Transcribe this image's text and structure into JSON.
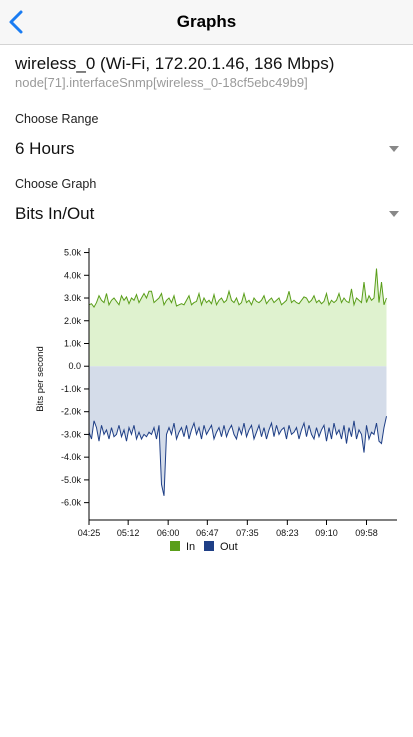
{
  "navbar": {
    "title": "Graphs"
  },
  "interface": {
    "title": "wireless_0 (Wi-Fi, 172.20.1.46, 186 Mbps)",
    "subtitle": "node[71].interfaceSnmp[wireless_0-18cf5ebc49b9]"
  },
  "range": {
    "label": "Choose Range",
    "value": "6 Hours"
  },
  "graph": {
    "label": "Choose Graph",
    "value": "Bits In/Out"
  },
  "chart_data": {
    "type": "area",
    "ylabel": "Bits per second",
    "ylim": [
      -6500,
      5200
    ],
    "yticks": [
      5000,
      4000,
      3000,
      2000,
      1000,
      0,
      -1000,
      -2000,
      -3000,
      -4000,
      -5000,
      -6000
    ],
    "ytick_labels": [
      "5.0k",
      "4.0k",
      "3.0k",
      "2.0k",
      "1.0k",
      "0.0",
      "-1.0k",
      "-2.0k",
      "-3.0k",
      "-4.0k",
      "-5.0k",
      "-6.0k"
    ],
    "x_minutes": [
      265,
      275,
      285,
      295,
      305,
      315,
      325,
      335,
      345,
      355,
      365,
      375,
      385,
      395,
      405,
      415,
      425,
      435,
      445,
      455,
      465,
      475,
      485,
      495,
      505,
      515,
      525,
      535,
      545,
      555,
      565,
      575,
      585,
      595,
      605,
      615,
      625
    ],
    "xlim": [
      265,
      625
    ],
    "xticks": [
      265,
      312,
      360,
      407,
      455,
      503,
      550,
      598
    ],
    "xtick_labels": [
      "04:25",
      "05:12",
      "06:00",
      "06:47",
      "07:35",
      "08:23",
      "09:10",
      "09:58"
    ],
    "series": [
      {
        "name": "In",
        "color": "#5a9e1a",
        "fill": "#dff2cf",
        "x": [
          265,
          268,
          271,
          274,
          277,
          280,
          283,
          286,
          289,
          292,
          295,
          298,
          301,
          304,
          307,
          310,
          313,
          316,
          319,
          322,
          325,
          328,
          331,
          334,
          337,
          340,
          343,
          346,
          349,
          352,
          355,
          358,
          361,
          364,
          367,
          370,
          373,
          376,
          379,
          382,
          385,
          388,
          391,
          394,
          397,
          400,
          403,
          406,
          409,
          412,
          415,
          418,
          421,
          424,
          427,
          430,
          433,
          436,
          439,
          442,
          445,
          448,
          451,
          454,
          457,
          460,
          463,
          466,
          469,
          472,
          475,
          478,
          481,
          484,
          487,
          490,
          493,
          496,
          499,
          502,
          505,
          508,
          511,
          514,
          517,
          520,
          523,
          526,
          529,
          532,
          535,
          538,
          541,
          544,
          547,
          550,
          553,
          556,
          559,
          562,
          565,
          568,
          571,
          574,
          577,
          580,
          583,
          586,
          589,
          592,
          595,
          598,
          601,
          604,
          607,
          610,
          613,
          616,
          619,
          622
        ],
        "values": [
          2700,
          2750,
          2600,
          2800,
          3100,
          2900,
          2800,
          3200,
          2700,
          2900,
          3000,
          2850,
          2700,
          3100,
          2900,
          3050,
          2750,
          3000,
          2900,
          3150,
          2800,
          3000,
          3200,
          3000,
          3300,
          3300,
          2800,
          2900,
          3000,
          3200,
          2700,
          2900,
          3000,
          2800,
          3100,
          2650,
          2700,
          2750,
          2700,
          2900,
          3100,
          2700,
          2800,
          2850,
          3200,
          2700,
          3000,
          2800,
          2900,
          2750,
          3150,
          2700,
          2900,
          3000,
          2800,
          2900,
          3300,
          2900,
          2800,
          3000,
          2700,
          2800,
          3200,
          2800,
          2900,
          2700,
          3000,
          2850,
          2800,
          2900,
          3100,
          2750,
          2900,
          3000,
          2800,
          2900,
          3000,
          2700,
          2800,
          2900,
          3300,
          2800,
          2900,
          2800,
          2750,
          2900,
          3050,
          3000,
          2800,
          2900,
          3100,
          2800,
          2900,
          2750,
          2850,
          3200,
          2700,
          2900,
          2800,
          2900,
          3200,
          2800,
          3000,
          2850,
          2800,
          3400,
          2700,
          3000,
          2900,
          2800,
          3700,
          2800,
          3100,
          2900,
          3000,
          4300,
          2800,
          3700,
          2700,
          3000
        ]
      },
      {
        "name": "Out",
        "color": "#1f3f86",
        "fill": "#d4dce9",
        "x": [
          265,
          268,
          271,
          274,
          277,
          280,
          283,
          286,
          289,
          292,
          295,
          298,
          301,
          304,
          307,
          310,
          313,
          316,
          319,
          322,
          325,
          328,
          331,
          334,
          337,
          340,
          343,
          346,
          349,
          352,
          355,
          358,
          361,
          364,
          367,
          370,
          373,
          376,
          379,
          382,
          385,
          388,
          391,
          394,
          397,
          400,
          403,
          406,
          409,
          412,
          415,
          418,
          421,
          424,
          427,
          430,
          433,
          436,
          439,
          442,
          445,
          448,
          451,
          454,
          457,
          460,
          463,
          466,
          469,
          472,
          475,
          478,
          481,
          484,
          487,
          490,
          493,
          496,
          499,
          502,
          505,
          508,
          511,
          514,
          517,
          520,
          523,
          526,
          529,
          532,
          535,
          538,
          541,
          544,
          547,
          550,
          553,
          556,
          559,
          562,
          565,
          568,
          571,
          574,
          577,
          580,
          583,
          586,
          589,
          592,
          595,
          598,
          601,
          604,
          607,
          610,
          613,
          616,
          619,
          622
        ],
        "values": [
          -2900,
          -3200,
          -2400,
          -2700,
          -3300,
          -2600,
          -3000,
          -2800,
          -3200,
          -2700,
          -3100,
          -3000,
          -2600,
          -3100,
          -2800,
          -3300,
          -2700,
          -3000,
          -2600,
          -3200,
          -2900,
          -3200,
          -3000,
          -3100,
          -2900,
          -3000,
          -2700,
          -3200,
          -2600,
          -5200,
          -5700,
          -3000,
          -2700,
          -3000,
          -2500,
          -3200,
          -2900,
          -2700,
          -3100,
          -2600,
          -3200,
          -2800,
          -2500,
          -3000,
          -2700,
          -3200,
          -2600,
          -3000,
          -2800,
          -2600,
          -3200,
          -2900,
          -2700,
          -3100,
          -2600,
          -3100,
          -2800,
          -2600,
          -3000,
          -3200,
          -2700,
          -3000,
          -2500,
          -3100,
          -2800,
          -2600,
          -3200,
          -2900,
          -2600,
          -3100,
          -2700,
          -3200,
          -2800,
          -2500,
          -3100,
          -2600,
          -3000,
          -2800,
          -2700,
          -3200,
          -2600,
          -3000,
          -2900,
          -2700,
          -3200,
          -2800,
          -2500,
          -3100,
          -2600,
          -3000,
          -3200,
          -2700,
          -3100,
          -2800,
          -2600,
          -3300,
          -2700,
          -3200,
          -2500,
          -3000,
          -2800,
          -3200,
          -2600,
          -3400,
          -2700,
          -3100,
          -2400,
          -3200,
          -2800,
          -3000,
          -3800,
          -2600,
          -3200,
          -2900,
          -3000,
          -2500,
          -3300,
          -3400,
          -2700,
          -2200
        ]
      }
    ],
    "legend_placement": "bottom-center",
    "grid": false
  }
}
